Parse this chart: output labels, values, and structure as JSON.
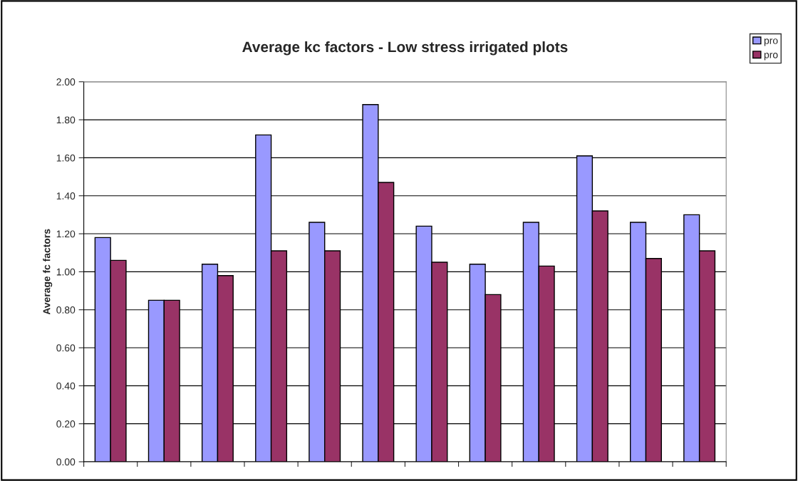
{
  "chart_data": {
    "type": "bar",
    "title": "Average kc factors - Low stress irrigated plots",
    "ylabel": "Average fc factors",
    "categories": [
      null,
      null,
      null,
      null,
      null,
      null,
      null,
      null,
      null,
      null,
      null,
      null
    ],
    "series": [
      {
        "name": "pro",
        "color": "#9999ff",
        "values": [
          1.18,
          0.85,
          1.04,
          1.72,
          1.26,
          1.88,
          1.24,
          1.04,
          1.26,
          1.61,
          1.26,
          1.3
        ]
      },
      {
        "name": "pro",
        "color": "#993366",
        "values": [
          1.06,
          0.85,
          0.98,
          1.11,
          1.11,
          1.47,
          1.05,
          0.88,
          1.03,
          1.32,
          1.07,
          1.11
        ]
      }
    ],
    "ylim": [
      0,
      2
    ],
    "yticks": [
      {
        "value": 0,
        "label": "0.00"
      },
      {
        "value": 0.2,
        "label": "0.20"
      },
      {
        "value": 0.4,
        "label": "0.40"
      },
      {
        "value": 0.6,
        "label": "0.60"
      },
      {
        "value": 0.8,
        "label": "0.80"
      },
      {
        "value": 1.0,
        "label": "1.00"
      },
      {
        "value": 1.2,
        "label": "1.20"
      },
      {
        "value": 1.4,
        "label": "1.40"
      },
      {
        "value": 1.6,
        "label": "1.60"
      },
      {
        "value": 1.8,
        "label": "1.80"
      },
      {
        "value": 2.0,
        "label": "2.00"
      }
    ],
    "grid": "y",
    "legend": "top right"
  }
}
